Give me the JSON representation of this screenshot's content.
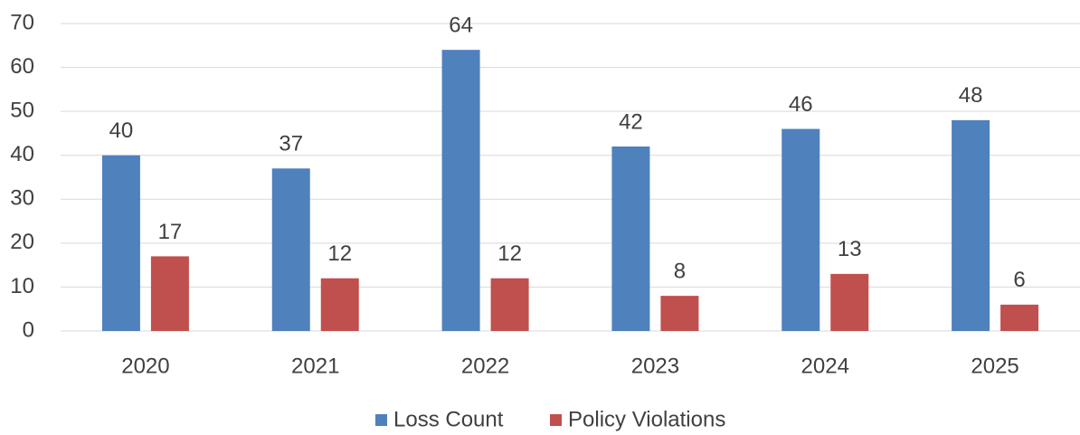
{
  "chart_data": {
    "type": "bar",
    "categories": [
      "2020",
      "2021",
      "2022",
      "2023",
      "2024",
      "2025"
    ],
    "series": [
      {
        "name": "Loss Count",
        "color": "#4f81bd",
        "values": [
          40,
          37,
          64,
          42,
          46,
          48
        ]
      },
      {
        "name": "Policy Violations",
        "color": "#c0504d",
        "values": [
          17,
          12,
          12,
          8,
          13,
          6
        ]
      }
    ],
    "ylim": [
      0,
      70
    ],
    "yticks": [
      0,
      10,
      20,
      30,
      40,
      50,
      60,
      70
    ],
    "grid": true,
    "legend": "bottom",
    "data_labels": true
  }
}
